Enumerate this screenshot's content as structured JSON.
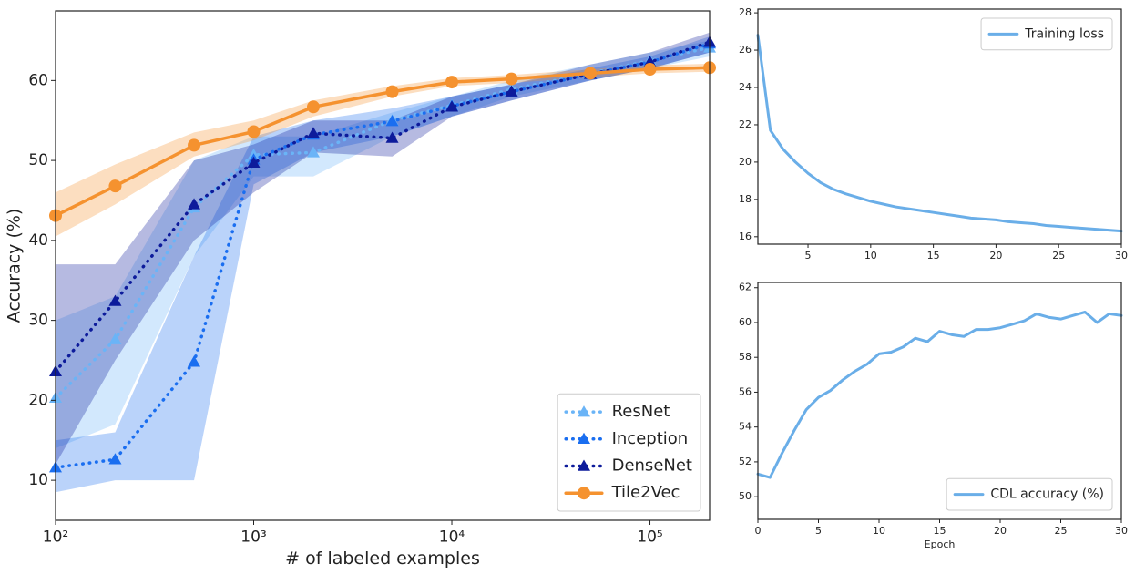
{
  "chart_data": [
    {
      "type": "line",
      "xscale": "log",
      "xlabel": "# of labeled examples",
      "ylabel": "Accuracy (%)",
      "x": [
        100,
        200,
        500,
        1000,
        2000,
        5000,
        10000,
        20000,
        50000,
        100000,
        200000
      ],
      "xlim": [
        100,
        200000
      ],
      "ylim": [
        5,
        68.7
      ],
      "xticks": [
        {
          "value": 100,
          "label": "10²"
        },
        {
          "value": 1000,
          "label": "10³"
        },
        {
          "value": 10000,
          "label": "10⁴"
        },
        {
          "value": 100000,
          "label": "10⁵"
        }
      ],
      "yticks": [
        10,
        20,
        30,
        40,
        50,
        60
      ],
      "legend": "lower right",
      "series": [
        {
          "name": "ResNet",
          "color": "#6ab4f7",
          "linestyle": "dotted",
          "marker": "triangle",
          "values": [
            20.3,
            27.6,
            44.1,
            50.7,
            51.0,
            55.0,
            56.9,
            58.9,
            60.9,
            62.5,
            64.1
          ],
          "lower": [
            14,
            17,
            38,
            48,
            48,
            53,
            55.5,
            58,
            60,
            61.5,
            63
          ],
          "upper": [
            30,
            33,
            50,
            53,
            53,
            56,
            58,
            60,
            62,
            63.5,
            65
          ]
        },
        {
          "name": "Inception",
          "color": "#1a6ef0",
          "linestyle": "dotted",
          "marker": "triangle",
          "values": [
            11.6,
            12.6,
            24.8,
            50.1,
            53.2,
            54.9,
            56.8,
            58.6,
            60.8,
            62.3,
            64.6
          ],
          "lower": [
            8.5,
            10,
            10,
            47,
            51,
            53,
            55.5,
            57.5,
            60,
            61.5,
            63.5
          ],
          "upper": [
            15,
            16,
            38,
            53,
            55,
            56.5,
            58,
            59.5,
            61.5,
            63,
            65.5
          ]
        },
        {
          "name": "DenseNet",
          "color": "#0d1b9b",
          "linestyle": "dotted",
          "marker": "triangle",
          "values": [
            23.6,
            32.4,
            44.5,
            49.7,
            53.4,
            52.8,
            56.7,
            58.6,
            60.8,
            62.3,
            64.8
          ],
          "lower": [
            12,
            25,
            40,
            46,
            51,
            50.5,
            55.5,
            57.5,
            60,
            61.5,
            63.5
          ],
          "upper": [
            37,
            37,
            50,
            52,
            55,
            55,
            58,
            59.5,
            62,
            63.5,
            66
          ]
        },
        {
          "name": "Tile2Vec",
          "color": "#f5922f",
          "linestyle": "solid",
          "marker": "circle",
          "values": [
            43.1,
            46.8,
            51.9,
            53.6,
            56.7,
            58.6,
            59.8,
            60.2,
            60.9,
            61.4,
            61.6
          ],
          "lower": [
            40.5,
            44.5,
            50.5,
            52.5,
            55.5,
            58,
            59.3,
            59.7,
            60.4,
            60.9,
            61.1
          ],
          "upper": [
            46,
            49.5,
            53.5,
            55,
            57.5,
            59.3,
            60.3,
            60.7,
            61.4,
            61.9,
            62.1
          ]
        }
      ]
    },
    {
      "type": "line",
      "x": [
        1,
        2,
        3,
        4,
        5,
        6,
        7,
        8,
        9,
        10,
        11,
        12,
        13,
        14,
        15,
        16,
        17,
        18,
        19,
        20,
        21,
        22,
        23,
        24,
        25,
        26,
        27,
        28,
        29,
        30
      ],
      "xlim": [
        1,
        30
      ],
      "ylim": [
        15.6,
        28.2
      ],
      "xticks": [
        5,
        10,
        15,
        20,
        25,
        30
      ],
      "yticks": [
        16,
        18,
        20,
        22,
        24,
        26,
        28
      ],
      "legend": "upper right",
      "series": [
        {
          "name": "Training loss",
          "color": "#6aaee8",
          "linestyle": "solid",
          "values": [
            26.8,
            21.7,
            20.7,
            20.0,
            19.4,
            18.9,
            18.55,
            18.3,
            18.1,
            17.9,
            17.75,
            17.6,
            17.5,
            17.4,
            17.3,
            17.2,
            17.1,
            17.0,
            16.95,
            16.9,
            16.8,
            16.75,
            16.7,
            16.6,
            16.55,
            16.5,
            16.45,
            16.4,
            16.35,
            16.3
          ]
        }
      ]
    },
    {
      "type": "line",
      "xlabel": "Epoch",
      "x": [
        0,
        1,
        2,
        3,
        4,
        5,
        6,
        7,
        8,
        9,
        10,
        11,
        12,
        13,
        14,
        15,
        16,
        17,
        18,
        19,
        20,
        21,
        22,
        23,
        24,
        25,
        26,
        27,
        28,
        29,
        30
      ],
      "xlim": [
        0,
        30
      ],
      "ylim": [
        48.7,
        62.3
      ],
      "xticks": [
        0,
        5,
        10,
        15,
        20,
        25,
        30
      ],
      "yticks": [
        50,
        52,
        54,
        56,
        58,
        60,
        62
      ],
      "legend": "lower right",
      "series": [
        {
          "name": "CDL accuracy (%)",
          "color": "#6aaee8",
          "linestyle": "solid",
          "values": [
            51.3,
            51.1,
            52.5,
            53.8,
            55.0,
            55.7,
            56.1,
            56.7,
            57.2,
            57.6,
            58.2,
            58.3,
            58.6,
            59.1,
            58.9,
            59.5,
            59.3,
            59.2,
            59.6,
            59.6,
            59.7,
            59.9,
            60.1,
            60.5,
            60.3,
            60.2,
            60.4,
            60.6,
            60.0,
            60.5,
            60.4
          ]
        }
      ]
    }
  ]
}
